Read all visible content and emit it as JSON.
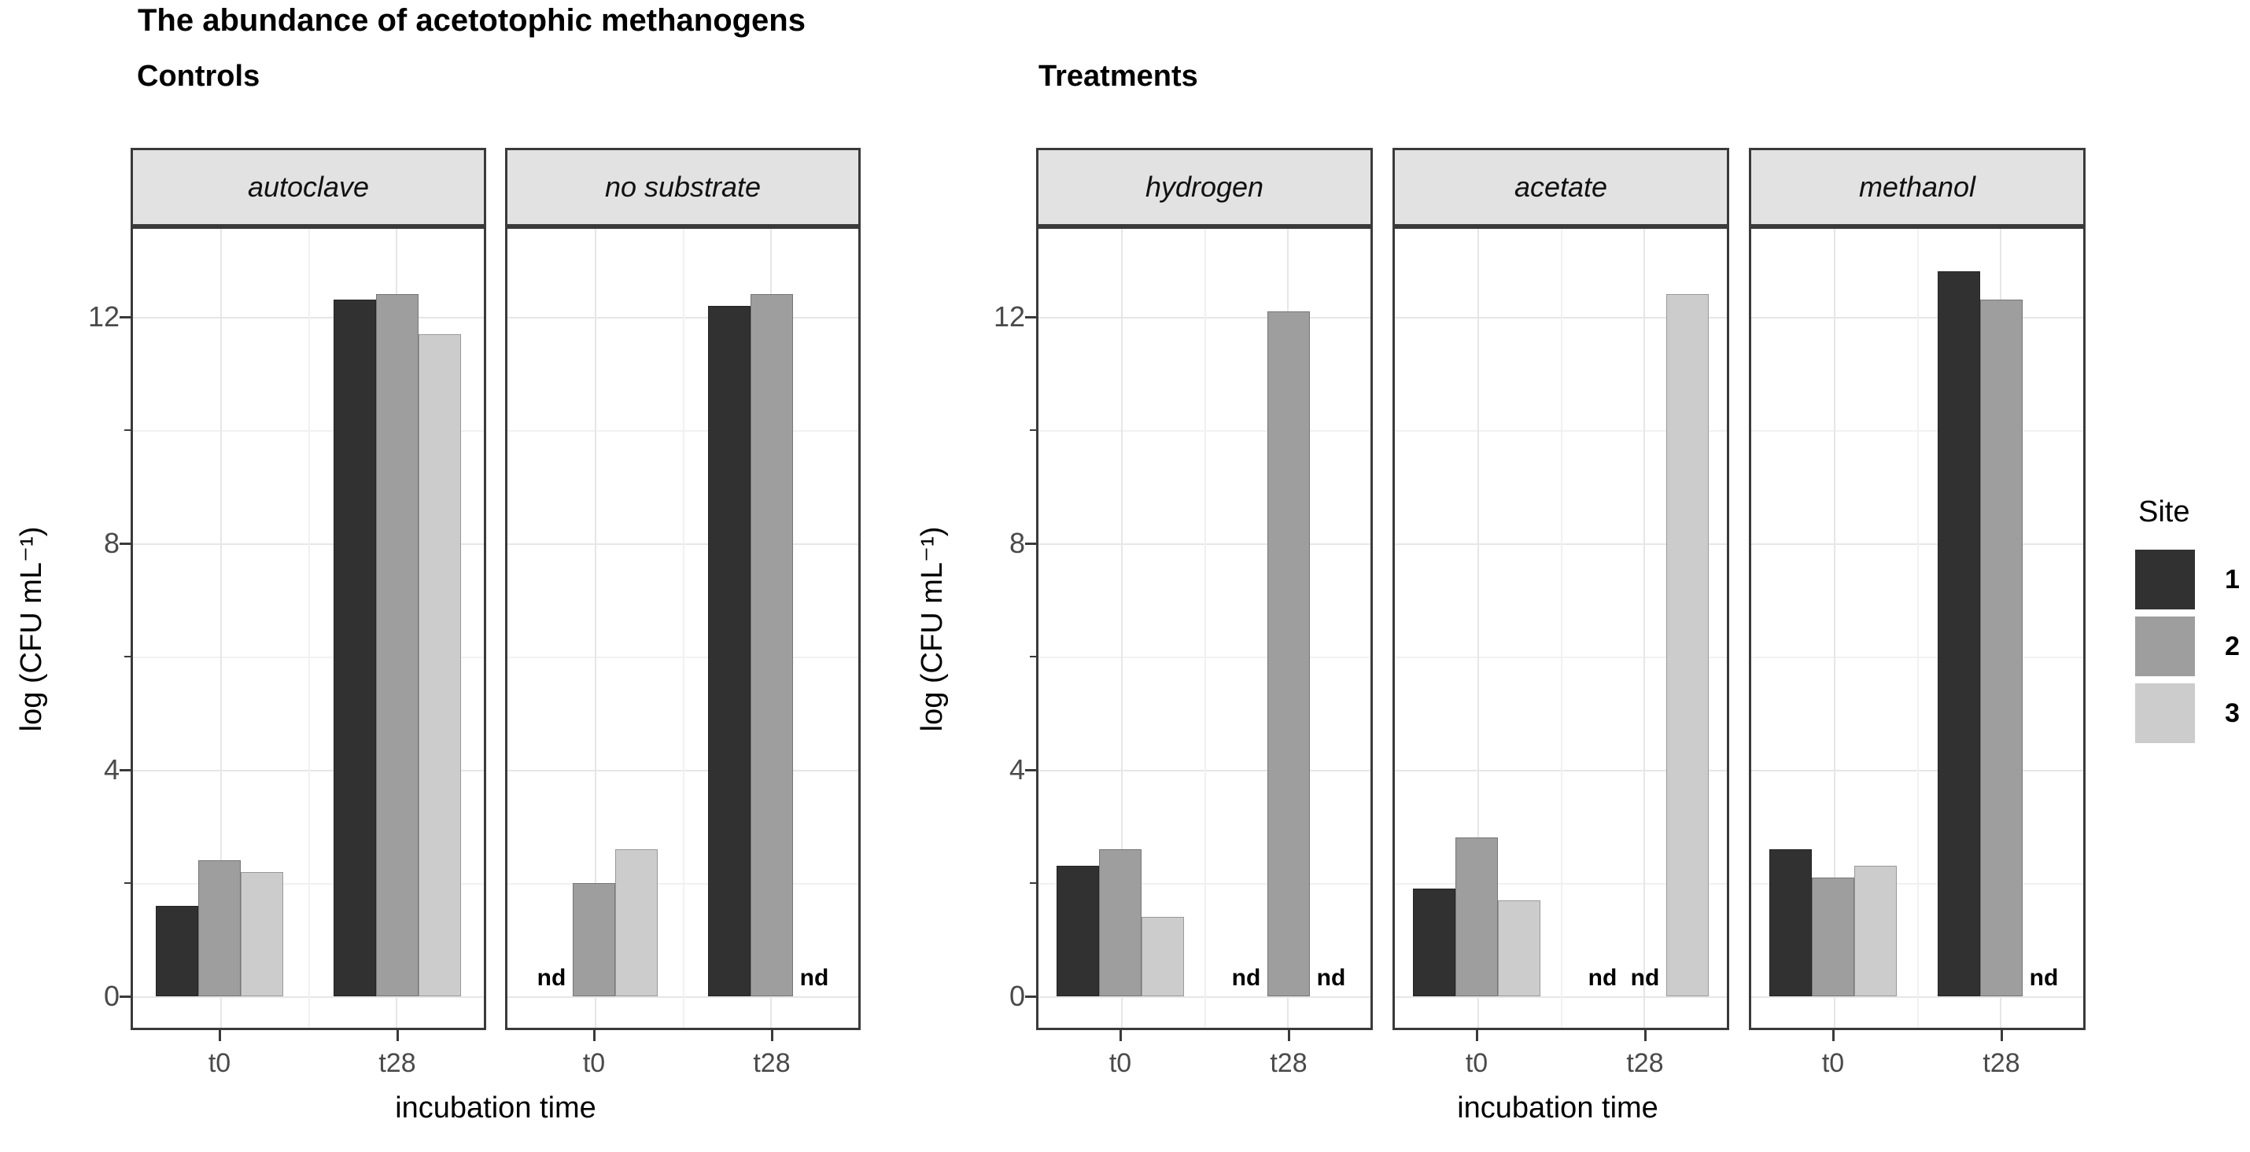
{
  "title": "The abundance of acetotophic methanogens",
  "chart_data": {
    "type": "bar",
    "title": "The abundance of acetotophic methanogens",
    "y_ticks": [
      0,
      4,
      8,
      12
    ],
    "y_minor_ticks": [
      2,
      6,
      10
    ],
    "ylim": [
      0,
      13.6
    ],
    "categories": [
      "t0",
      "t28"
    ],
    "nd_label": "nd",
    "grid": "on",
    "strip_background": "#e2e2e2",
    "facet_groups": [
      {
        "group_label": "Controls",
        "xlabel": "incubation time",
        "ylabel": "log (CFU mL⁻¹)",
        "panels": [
          {
            "facet": "autoclave",
            "categories": [
              "t0",
              "t28"
            ],
            "series": [
              {
                "name": "1",
                "values": [
                  1.6,
                  12.3
                ]
              },
              {
                "name": "2",
                "values": [
                  2.4,
                  12.4
                ]
              },
              {
                "name": "3",
                "values": [
                  2.2,
                  11.7
                ]
              }
            ]
          },
          {
            "facet": "no substrate",
            "categories": [
              "t0",
              "t28"
            ],
            "series": [
              {
                "name": "1",
                "values": [
                  "nd",
                  12.2
                ]
              },
              {
                "name": "2",
                "values": [
                  2.0,
                  12.4
                ]
              },
              {
                "name": "3",
                "values": [
                  2.6,
                  "nd"
                ]
              }
            ]
          }
        ]
      },
      {
        "group_label": "Treatments",
        "xlabel": "incubation time",
        "ylabel": "log (CFU mL⁻¹)",
        "panels": [
          {
            "facet": "hydrogen",
            "categories": [
              "t0",
              "t28"
            ],
            "series": [
              {
                "name": "1",
                "values": [
                  2.3,
                  "nd"
                ]
              },
              {
                "name": "2",
                "values": [
                  2.6,
                  12.1
                ]
              },
              {
                "name": "3",
                "values": [
                  1.4,
                  "nd"
                ]
              }
            ]
          },
          {
            "facet": "acetate",
            "categories": [
              "t0",
              "t28"
            ],
            "series": [
              {
                "name": "1",
                "values": [
                  1.9,
                  "nd"
                ]
              },
              {
                "name": "2",
                "values": [
                  2.8,
                  "nd"
                ]
              },
              {
                "name": "3",
                "values": [
                  1.7,
                  12.4
                ]
              }
            ]
          },
          {
            "facet": "methanol",
            "categories": [
              "t0",
              "t28"
            ],
            "series": [
              {
                "name": "1",
                "values": [
                  2.6,
                  12.8
                ]
              },
              {
                "name": "2",
                "values": [
                  2.1,
                  12.3
                ]
              },
              {
                "name": "3",
                "values": [
                  2.3,
                  "nd"
                ]
              }
            ]
          }
        ]
      }
    ],
    "legend": {
      "title": "Site",
      "position": "right",
      "entries": [
        {
          "label": "1",
          "color": "#313131"
        },
        {
          "label": "2",
          "color": "#9e9e9e"
        },
        {
          "label": "3",
          "color": "#cccccc"
        }
      ]
    }
  }
}
